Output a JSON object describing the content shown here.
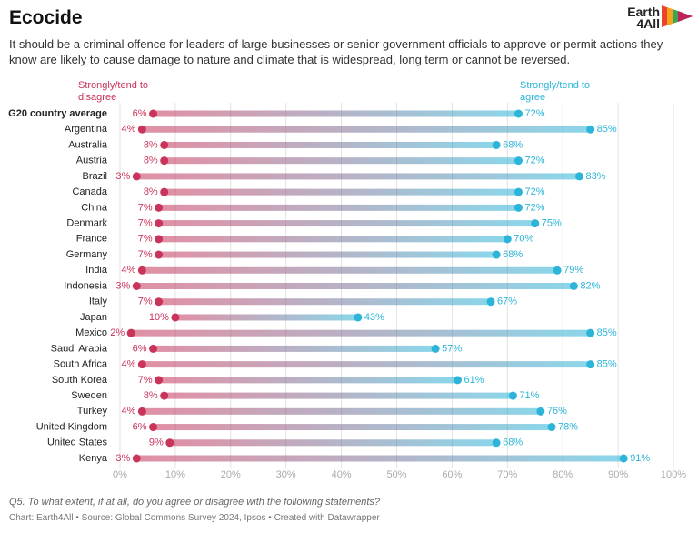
{
  "chart_data": {
    "type": "dumbbell",
    "title": "Ecocide",
    "subtitle": "It should be a criminal offence for leaders of large businesses or senior government officials to approve or permit actions they know are likely to cause damage to nature and climate that is widespread, long term or cannot be reversed.",
    "logo": {
      "line1": "Earth",
      "line2": "4All"
    },
    "categories": [
      "G20 country average",
      "Argentina",
      "Australia",
      "Austria",
      "Brazil",
      "Canada",
      "China",
      "Denmark",
      "France",
      "Germany",
      "India",
      "Indonesia",
      "Italy",
      "Japan",
      "Mexico",
      "Saudi Arabia",
      "South Africa",
      "South Korea",
      "Sweden",
      "Turkey",
      "United Kingdom",
      "United States",
      "Kenya"
    ],
    "series": [
      {
        "name": "Strongly/tend to disagree",
        "color": "#c9345a",
        "values": [
          6,
          4,
          8,
          8,
          3,
          8,
          7,
          7,
          7,
          7,
          4,
          3,
          7,
          10,
          2,
          6,
          4,
          7,
          8,
          4,
          6,
          9,
          3
        ],
        "value_labels": [
          "6%",
          "4%",
          "8%",
          "8%",
          "3%",
          "8%",
          "7%",
          "7%",
          "7%",
          "7%",
          "4%",
          "3%",
          "7%",
          "10%",
          "2%",
          "6%",
          "4%",
          "7%",
          "8%",
          "4%",
          "6%",
          "9%",
          "3%"
        ]
      },
      {
        "name": "Strongly/tend to agree",
        "color": "#2cb5d8",
        "values": [
          72,
          85,
          68,
          72,
          83,
          72,
          72,
          75,
          70,
          68,
          79,
          82,
          67,
          43,
          85,
          57,
          85,
          61,
          71,
          76,
          78,
          68,
          91
        ],
        "value_labels": [
          "72%",
          "85%",
          "68%",
          "72%",
          "83%",
          "72%",
          "72%",
          "75%",
          "70%",
          "68%",
          "79%",
          "82%",
          "67%",
          "43%",
          "85%",
          "57%",
          "85%",
          "61%",
          "71%",
          "76%",
          "78%",
          "68%",
          "91%"
        ]
      }
    ],
    "xlim": [
      0,
      100
    ],
    "xticks": [
      {
        "value": 0,
        "label": "0%"
      },
      {
        "value": 10,
        "label": "10%"
      },
      {
        "value": 20,
        "label": "20%"
      },
      {
        "value": 30,
        "label": "30%"
      },
      {
        "value": 40,
        "label": "40%"
      },
      {
        "value": 50,
        "label": "50%"
      },
      {
        "value": 60,
        "label": "60%"
      },
      {
        "value": 70,
        "label": "70%"
      },
      {
        "value": 80,
        "label": "80%"
      },
      {
        "value": 90,
        "label": "90%"
      },
      {
        "value": 100,
        "label": "100%"
      }
    ],
    "grid": true,
    "note": "Q5. To what extent, if at all, do you agree or disagree with the following statements?",
    "source": "Chart: Earth4All • Source: Global Commons Survey 2024, Ipsos • Created with Datawrapper"
  }
}
